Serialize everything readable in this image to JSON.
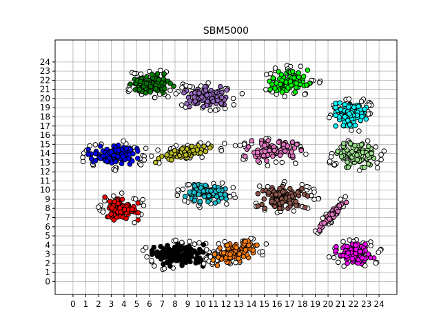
{
  "chart_data": {
    "type": "scatter",
    "title": "SBM5000",
    "xlabel": "",
    "ylabel": "",
    "xlim": [
      -1.4,
      25.4
    ],
    "ylim": [
      -1.4,
      26.4
    ],
    "xticks": [
      0,
      1,
      2,
      3,
      4,
      5,
      6,
      7,
      8,
      9,
      10,
      11,
      12,
      13,
      14,
      15,
      16,
      17,
      18,
      19,
      20,
      21,
      22,
      23,
      24
    ],
    "yticks": [
      0,
      1,
      2,
      3,
      4,
      5,
      6,
      7,
      8,
      9,
      10,
      11,
      12,
      13,
      14,
      15,
      16,
      17,
      18,
      19,
      20,
      21,
      22,
      23,
      24
    ],
    "grid": true,
    "legend": "none",
    "noise_color": "#ffffff",
    "clusters": [
      {
        "color": "#008000",
        "center": [
          6.2,
          21.6
        ],
        "spread": [
          1.7,
          1.1
        ],
        "angle": 0,
        "count": 95
      },
      {
        "color": "#9467bd",
        "center": [
          10.6,
          20.2
        ],
        "spread": [
          1.9,
          1.1
        ],
        "angle": 0,
        "count": 95
      },
      {
        "color": "#00ff00",
        "center": [
          17.0,
          21.9
        ],
        "spread": [
          1.6,
          1.2
        ],
        "angle": 0,
        "count": 95
      },
      {
        "color": "#00ffff",
        "center": [
          21.8,
          18.4
        ],
        "spread": [
          1.2,
          1.4
        ],
        "angle": 0,
        "count": 90
      },
      {
        "color": "#0000ff",
        "center": [
          3.2,
          13.8
        ],
        "spread": [
          2.0,
          1.1
        ],
        "angle": 0,
        "count": 105
      },
      {
        "color": "#bcbd22",
        "center": [
          8.7,
          14.1
        ],
        "spread": [
          2.4,
          0.6
        ],
        "angle": 12,
        "count": 85
      },
      {
        "color": "#e377c2",
        "center": [
          15.7,
          14.3
        ],
        "spread": [
          2.2,
          1.1
        ],
        "angle": 0,
        "count": 95
      },
      {
        "color": "#98df8a",
        "center": [
          22.3,
          13.8
        ],
        "spread": [
          1.6,
          1.3
        ],
        "angle": 0,
        "count": 90
      },
      {
        "color": "#17becf",
        "center": [
          10.3,
          9.6
        ],
        "spread": [
          1.8,
          1.0
        ],
        "angle": 0,
        "count": 90
      },
      {
        "color": "#8c564b",
        "center": [
          16.5,
          9.2
        ],
        "spread": [
          2.0,
          1.2
        ],
        "angle": 0,
        "count": 100
      },
      {
        "color": "#e377c2",
        "center": [
          20.3,
          7.3
        ],
        "spread": [
          2.0,
          0.3
        ],
        "angle": 58,
        "count": 55
      },
      {
        "color": "#ff0000",
        "center": [
          3.8,
          8.0
        ],
        "spread": [
          1.3,
          1.3
        ],
        "angle": 0,
        "count": 85
      },
      {
        "color": "#000000",
        "center": [
          8.4,
          2.9
        ],
        "spread": [
          2.2,
          1.2
        ],
        "angle": 0,
        "count": 130
      },
      {
        "color": "#ff7f0e",
        "center": [
          12.7,
          3.2
        ],
        "spread": [
          1.9,
          1.0
        ],
        "angle": 20,
        "count": 90
      },
      {
        "color": "#ff00ff",
        "center": [
          22.1,
          3.0
        ],
        "spread": [
          1.5,
          1.1
        ],
        "angle": 0,
        "count": 100
      }
    ]
  }
}
